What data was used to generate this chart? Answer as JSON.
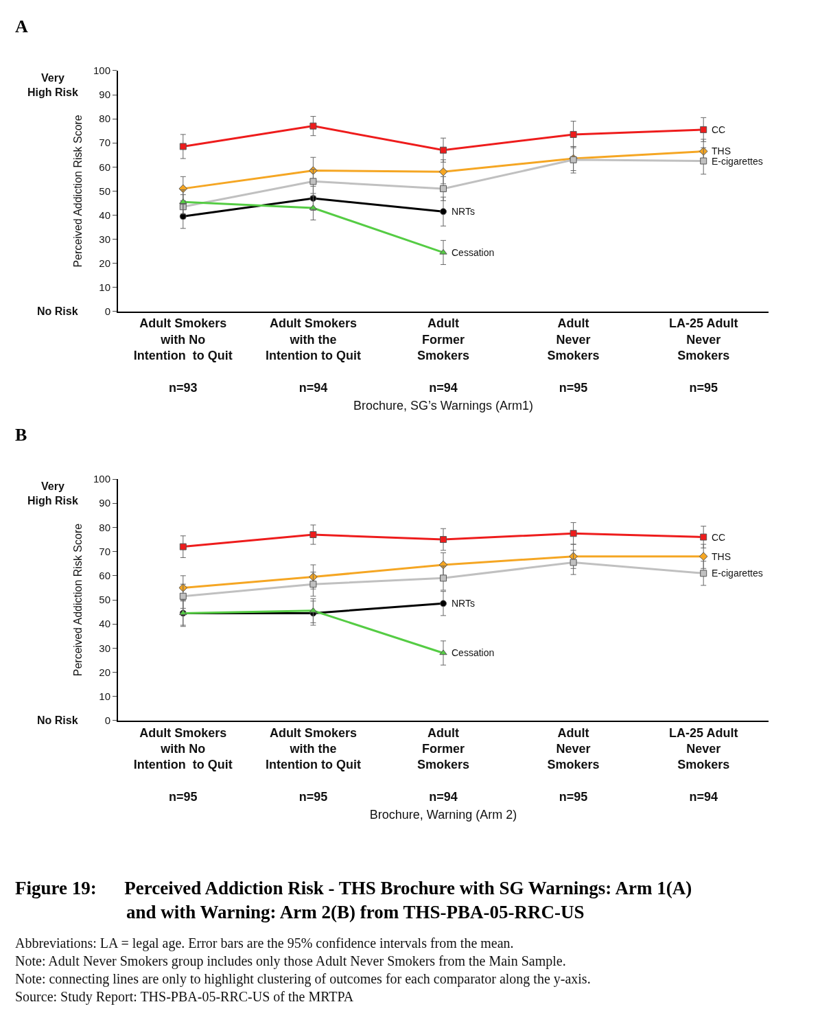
{
  "chart_data": [
    {
      "type": "line",
      "title": "A",
      "xlabel": "Brochure, SG’s Warnings (Arm1)",
      "ylabel": "Perceived Addiction Risk Score",
      "categories": [
        "Adult Smokers\nwith No\nIntention  to Quit\n\nn=93",
        "Adult Smokers\nwith the\nIntention to Quit\n\nn=94",
        "Adult\nFormer\nSmokers\n\nn=94",
        "Adult\nNever\nSmokers\n\nn=95",
        "LA-25 Adult\nNever\nSmokers\n\nn=95"
      ],
      "ylim": [
        0,
        100
      ],
      "yticks": [
        0,
        10,
        20,
        30,
        40,
        50,
        60,
        70,
        80,
        90,
        100
      ],
      "annotations": [
        "Very\nHigh Risk",
        "No Risk"
      ],
      "series": [
        {
          "name": "CC",
          "color": "#ee1c1c",
          "marker": "square",
          "values": [
            68.5,
            77,
            67,
            73.5,
            75.5
          ],
          "errors": [
            5,
            4,
            5,
            5.5,
            5
          ]
        },
        {
          "name": "THS",
          "color": "#f5a623",
          "marker": "diamond",
          "values": [
            51,
            58.5,
            58,
            63.5,
            66.5
          ],
          "errors": [
            5,
            5.5,
            5,
            5,
            5
          ]
        },
        {
          "name": "E-cigarettes",
          "color": "#c0c0c0",
          "marker": "square",
          "values": [
            43.5,
            54,
            51,
            63,
            62.5
          ],
          "errors": [
            5,
            5,
            5,
            5.5,
            5.5
          ]
        },
        {
          "name": "NRTs",
          "color": "#000000",
          "marker": "circle",
          "values": [
            39.5,
            47,
            41.5,
            null,
            null
          ],
          "errors": [
            5,
            5,
            6,
            null,
            null
          ]
        },
        {
          "name": "Cessation",
          "color": "#55cc44",
          "marker": "triangle",
          "values": [
            45.5,
            43,
            24.5,
            null,
            null
          ],
          "errors": [
            5,
            5,
            5,
            null,
            null
          ]
        }
      ]
    },
    {
      "type": "line",
      "title": "B",
      "xlabel": "Brochure, Warning (Arm 2)",
      "ylabel": "Perceived Addiction Risk Score",
      "categories": [
        "Adult Smokers\nwith No\nIntention  to Quit\n\nn=95",
        "Adult Smokers\nwith the\nIntention to Quit\n\nn=95",
        "Adult\nFormer\nSmokers\n\nn=94",
        "Adult\nNever\nSmokers\n\nn=95",
        "LA-25 Adult\nNever\nSmokers\n\nn=94"
      ],
      "ylim": [
        0,
        100
      ],
      "yticks": [
        0,
        10,
        20,
        30,
        40,
        50,
        60,
        70,
        80,
        90,
        100
      ],
      "annotations": [
        "Very\nHigh Risk",
        "No Risk",
        "Figure 19:\tPerceived Addiction Risk - THS Brochure with SG Warnings: Arm 1(A)\nand with Warning: Arm 2(B) from THS-PBA-05-RRC-US",
        "Abbreviations: LA = legal age. Error bars are the 95% confidence intervals from the mean.\nNote: Adult Never Smokers group includes only those Adult Never Smokers from the Main Sample.\nNote: connecting lines are only to highlight clustering of outcomes for each comparator along the y-axis.\nSource: Study Report: THS-PBA-05-RRC-US of the MRTPA"
      ],
      "series": [
        {
          "name": "CC",
          "color": "#ee1c1c",
          "marker": "square",
          "values": [
            72,
            77,
            75,
            77.5,
            76
          ],
          "errors": [
            4.5,
            4,
            4.5,
            4.5,
            4.5
          ]
        },
        {
          "name": "THS",
          "color": "#f5a623",
          "marker": "diamond",
          "values": [
            55,
            59.5,
            64.5,
            68,
            68
          ],
          "errors": [
            5,
            5,
            5,
            5,
            5
          ]
        },
        {
          "name": "E-cigarettes",
          "color": "#c0c0c0",
          "marker": "square",
          "values": [
            51.5,
            56.5,
            59,
            65.5,
            61
          ],
          "errors": [
            5,
            5,
            5,
            5,
            5
          ]
        },
        {
          "name": "NRTs",
          "color": "#000000",
          "marker": "circle",
          "values": [
            44.5,
            44.5,
            48.5,
            null,
            null
          ],
          "errors": [
            5,
            5,
            5,
            null,
            null
          ]
        },
        {
          "name": "Cessation",
          "color": "#55cc44",
          "marker": "triangle",
          "values": [
            44.5,
            45.5,
            28,
            null,
            null
          ],
          "errors": [
            5.5,
            5,
            5,
            null,
            null
          ]
        }
      ]
    }
  ]
}
